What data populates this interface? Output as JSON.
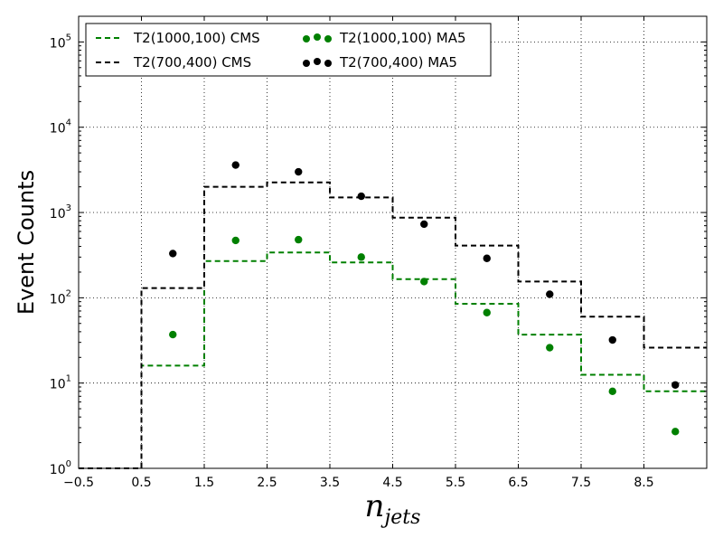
{
  "chart_data": {
    "type": "line",
    "ylabel": "Event Counts",
    "xlabel": {
      "base": "n",
      "subscript": "jets"
    },
    "xlim": [
      -0.5,
      9.5
    ],
    "ylim": [
      1,
      200000
    ],
    "y_scale": "log",
    "grid": true,
    "legend_position": "top-left",
    "x_ticks": [
      "−0.5",
      "0.5",
      "1.5",
      "2.5",
      "3.5",
      "4.5",
      "5.5",
      "6.5",
      "7.5",
      "8.5"
    ],
    "x_tick_values": [
      -0.5,
      0.5,
      1.5,
      2.5,
      3.5,
      4.5,
      5.5,
      6.5,
      7.5,
      8.5
    ],
    "y_ticks": [
      {
        "base": "10",
        "exp": "0",
        "value": 1
      },
      {
        "base": "10",
        "exp": "1",
        "value": 10
      },
      {
        "base": "10",
        "exp": "2",
        "value": 100
      },
      {
        "base": "10",
        "exp": "3",
        "value": 1000
      },
      {
        "base": "10",
        "exp": "4",
        "value": 10000
      },
      {
        "base": "10",
        "exp": "5",
        "value": 100000
      }
    ],
    "series": [
      {
        "name": "T2(1000,100) CMS",
        "style": "step-dashed",
        "color": "#008000",
        "x": [
          0,
          1,
          2,
          3,
          4,
          5,
          6,
          7,
          8,
          9
        ],
        "values": [
          1,
          16,
          270,
          340,
          260,
          165,
          85,
          37,
          12.5,
          8
        ]
      },
      {
        "name": "T2(700,400) CMS",
        "style": "step-dashed",
        "color": "#000000",
        "x": [
          0,
          1,
          2,
          3,
          4,
          5,
          6,
          7,
          8,
          9
        ],
        "values": [
          1,
          130,
          2000,
          2250,
          1500,
          870,
          410,
          155,
          60,
          26
        ]
      },
      {
        "name": "T2(1000,100) MA5",
        "style": "markers",
        "color": "#008000",
        "x": [
          1,
          2,
          3,
          4,
          5,
          6,
          7,
          8,
          9
        ],
        "values": [
          37,
          470,
          480,
          300,
          155,
          67,
          26,
          8,
          2.7
        ]
      },
      {
        "name": "T2(700,400) MA5",
        "style": "markers",
        "color": "#000000",
        "x": [
          1,
          2,
          3,
          4,
          5,
          6,
          7,
          8,
          9
        ],
        "values": [
          330,
          3600,
          3000,
          1550,
          730,
          290,
          110,
          32,
          9.5
        ]
      }
    ]
  }
}
